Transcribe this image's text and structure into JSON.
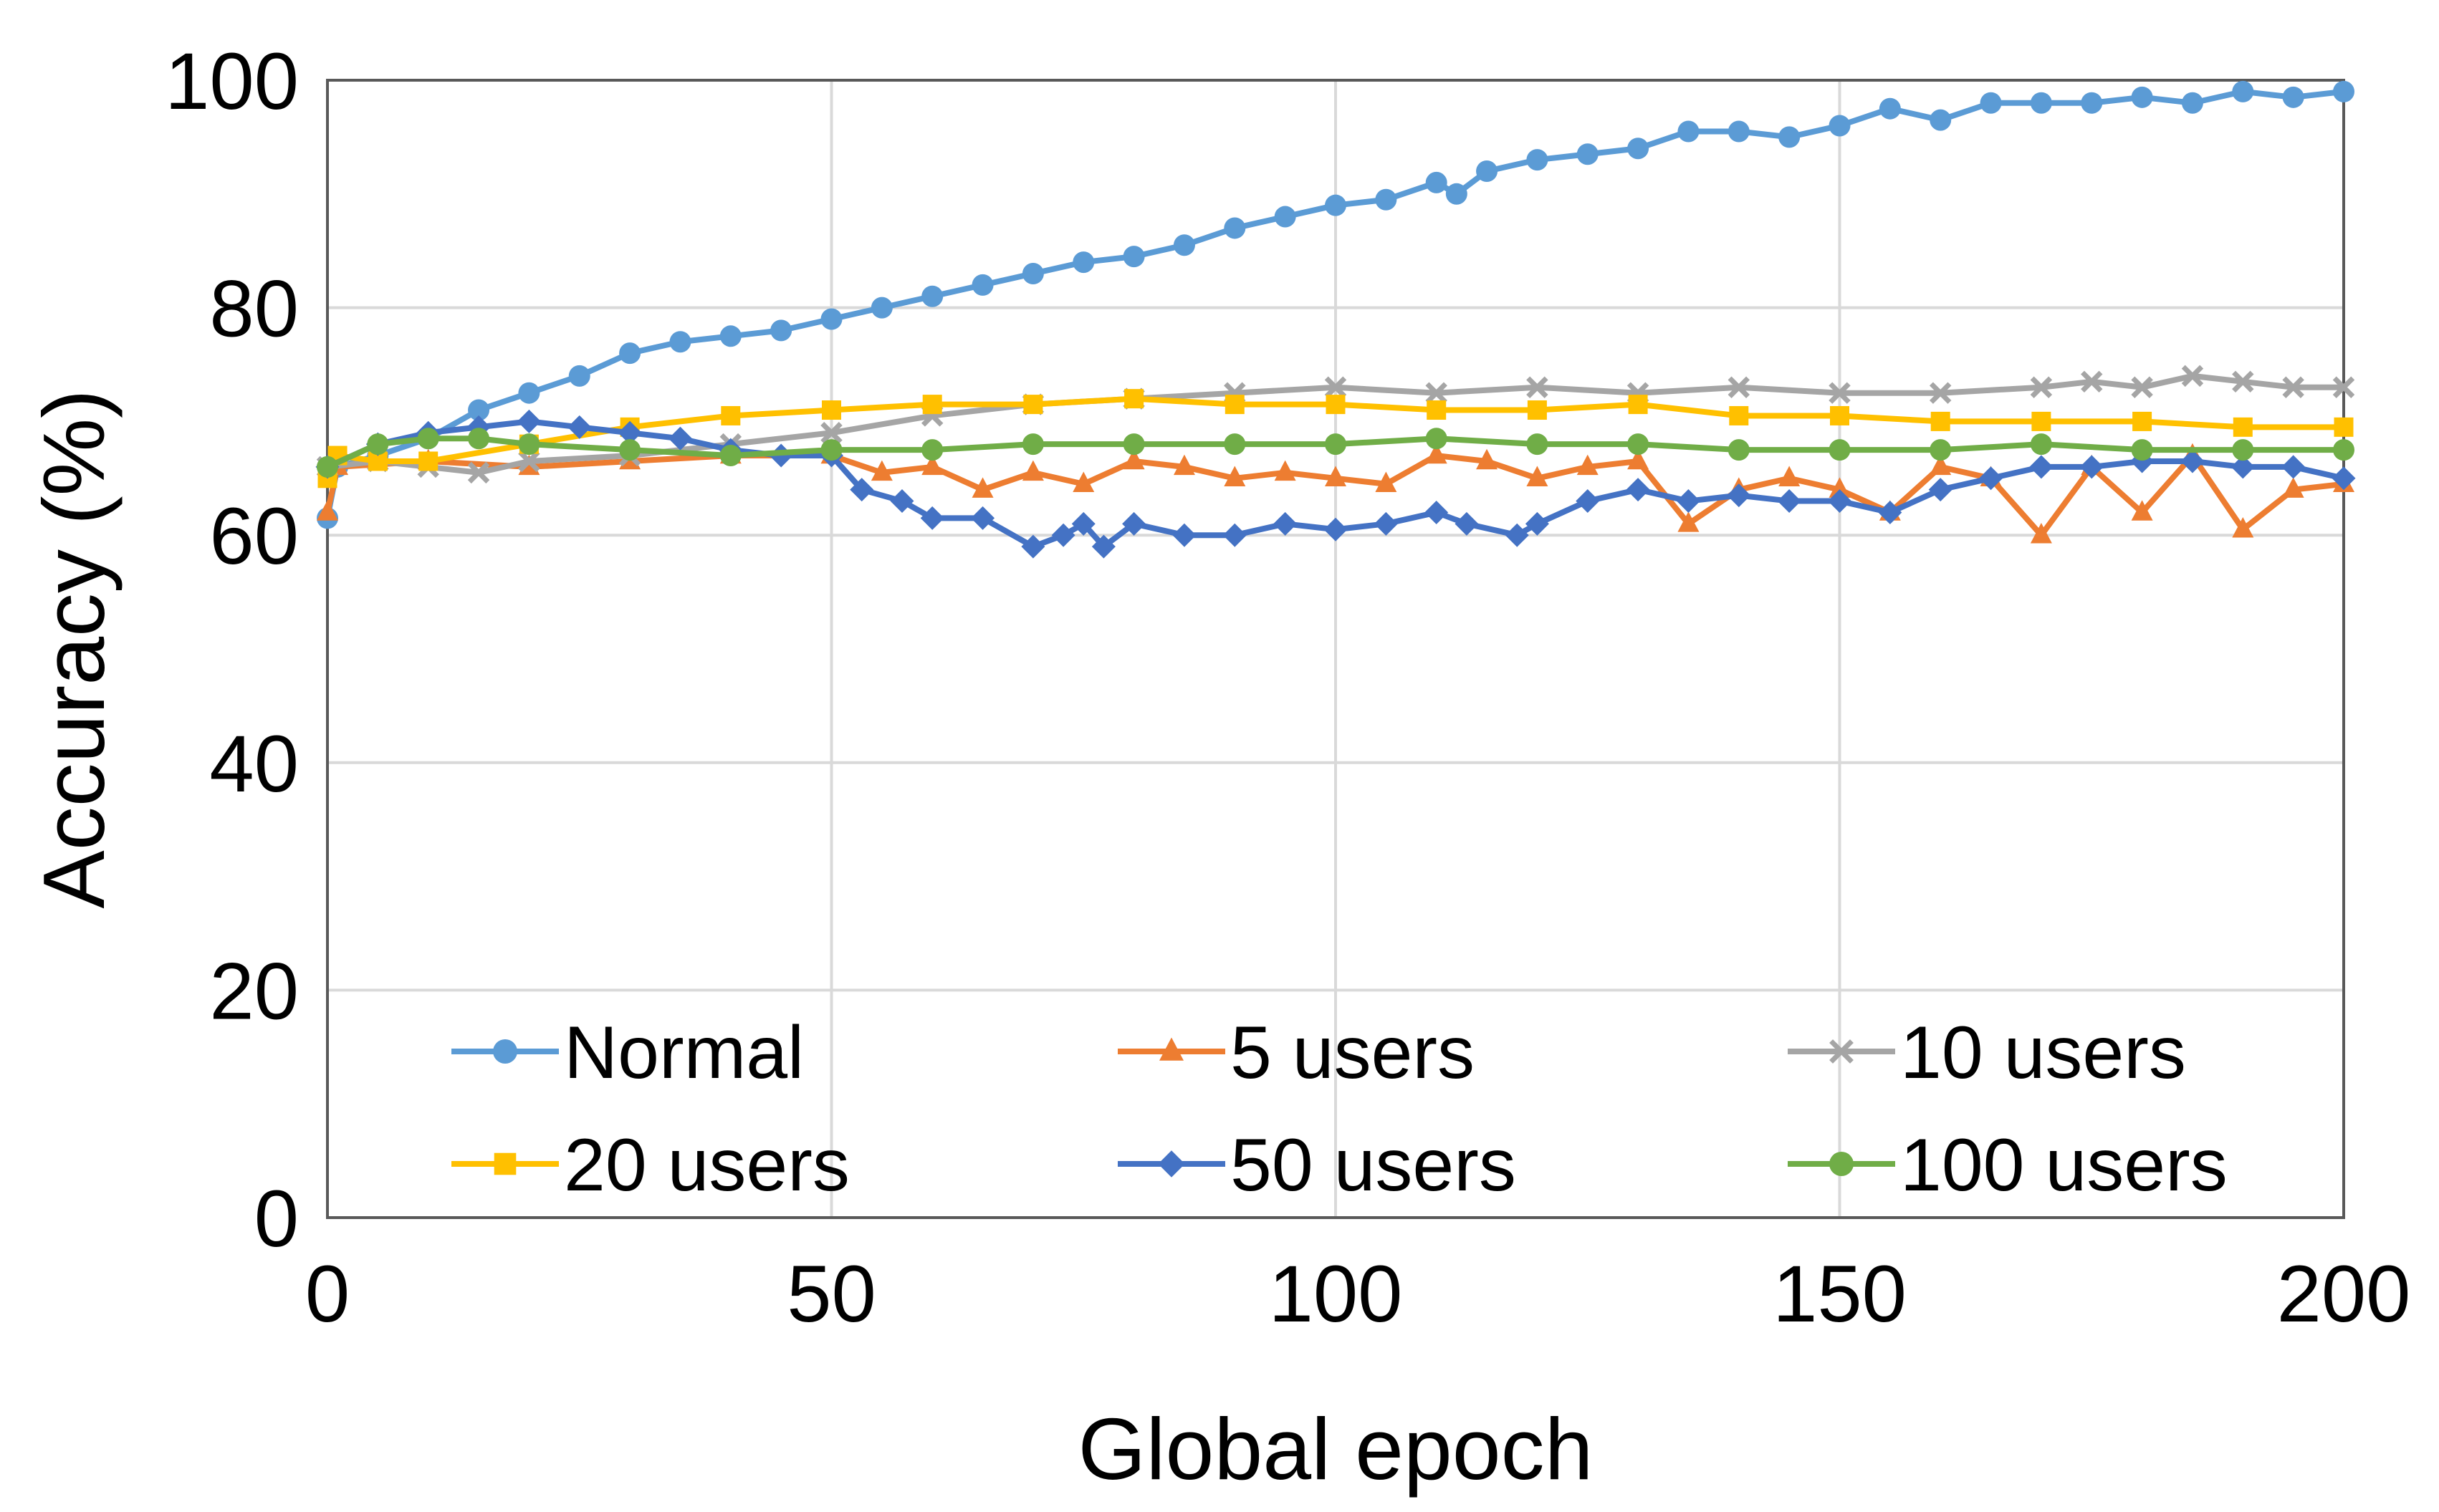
{
  "chart_data": {
    "type": "line",
    "title": "",
    "xlabel": "Global epoch",
    "ylabel": "Accuracy (%)",
    "xlim": [
      0,
      200
    ],
    "ylim": [
      0,
      100
    ],
    "x_ticks": [
      "0",
      "50",
      "100",
      "150",
      "200"
    ],
    "y_ticks": [
      "0",
      "20",
      "40",
      "60",
      "80",
      "100"
    ],
    "grid": true,
    "legend_position": "bottom, inside plot area, 3 columns",
    "series": [
      {
        "name": "Normal",
        "color": "#5B9BD5",
        "marker": "circle",
        "points": [
          [
            0,
            61.5
          ],
          [
            1,
            66
          ],
          [
            5,
            67
          ],
          [
            10,
            68.5
          ],
          [
            15,
            71
          ],
          [
            20,
            72.5
          ],
          [
            25,
            74
          ],
          [
            30,
            76
          ],
          [
            35,
            77
          ],
          [
            40,
            77.5
          ],
          [
            45,
            78
          ],
          [
            50,
            79
          ],
          [
            55,
            80
          ],
          [
            60,
            81
          ],
          [
            65,
            82
          ],
          [
            70,
            83
          ],
          [
            75,
            84
          ],
          [
            80,
            84.5
          ],
          [
            85,
            85.5
          ],
          [
            90,
            87
          ],
          [
            95,
            88
          ],
          [
            100,
            89
          ],
          [
            105,
            89.5
          ],
          [
            110,
            91
          ],
          [
            112,
            90
          ],
          [
            115,
            92
          ],
          [
            120,
            93
          ],
          [
            125,
            93.5
          ],
          [
            130,
            94
          ],
          [
            135,
            95.5
          ],
          [
            140,
            95.5
          ],
          [
            145,
            95
          ],
          [
            150,
            96
          ],
          [
            155,
            97.5
          ],
          [
            160,
            96.5
          ],
          [
            165,
            98
          ],
          [
            170,
            98
          ],
          [
            175,
            98
          ],
          [
            180,
            98.5
          ],
          [
            185,
            98
          ],
          [
            190,
            99
          ],
          [
            195,
            98.5
          ],
          [
            200,
            99
          ]
        ]
      },
      {
        "name": "5 users",
        "color": "#ED7D31",
        "marker": "triangle",
        "points": [
          [
            0,
            62
          ],
          [
            1,
            66
          ],
          [
            10,
            66.5
          ],
          [
            20,
            66
          ],
          [
            30,
            66.5
          ],
          [
            40,
            67
          ],
          [
            50,
            67
          ],
          [
            55,
            65.5
          ],
          [
            60,
            66
          ],
          [
            65,
            64
          ],
          [
            70,
            65.5
          ],
          [
            75,
            64.5
          ],
          [
            80,
            66.5
          ],
          [
            85,
            66
          ],
          [
            90,
            65
          ],
          [
            95,
            65.5
          ],
          [
            100,
            65
          ],
          [
            105,
            64.5
          ],
          [
            110,
            67
          ],
          [
            115,
            66.5
          ],
          [
            120,
            65
          ],
          [
            125,
            66
          ],
          [
            130,
            66.5
          ],
          [
            135,
            61
          ],
          [
            140,
            64
          ],
          [
            145,
            65
          ],
          [
            150,
            64
          ],
          [
            155,
            62
          ],
          [
            160,
            66
          ],
          [
            165,
            65
          ],
          [
            170,
            60
          ],
          [
            175,
            66
          ],
          [
            180,
            62
          ],
          [
            185,
            67
          ],
          [
            190,
            60.5
          ],
          [
            195,
            64
          ],
          [
            200,
            64.5
          ]
        ]
      },
      {
        "name": "10 users",
        "color": "#A5A5A5",
        "marker": "x",
        "points": [
          [
            0,
            66
          ],
          [
            5,
            66.5
          ],
          [
            10,
            66
          ],
          [
            15,
            65.5
          ],
          [
            20,
            66.5
          ],
          [
            30,
            67
          ],
          [
            40,
            68
          ],
          [
            50,
            69
          ],
          [
            60,
            70.5
          ],
          [
            70,
            71.5
          ],
          [
            80,
            72
          ],
          [
            90,
            72.5
          ],
          [
            100,
            73
          ],
          [
            110,
            72.5
          ],
          [
            120,
            73
          ],
          [
            130,
            72.5
          ],
          [
            140,
            73
          ],
          [
            150,
            72.5
          ],
          [
            160,
            72.5
          ],
          [
            170,
            73
          ],
          [
            175,
            73.5
          ],
          [
            180,
            73
          ],
          [
            185,
            74
          ],
          [
            190,
            73.5
          ],
          [
            195,
            73
          ],
          [
            200,
            73
          ]
        ]
      },
      {
        "name": "20 users",
        "color": "#FFC000",
        "marker": "square",
        "points": [
          [
            0,
            65
          ],
          [
            1,
            67
          ],
          [
            5,
            66.5
          ],
          [
            10,
            66.5
          ],
          [
            20,
            68
          ],
          [
            30,
            69.5
          ],
          [
            40,
            70.5
          ],
          [
            50,
            71
          ],
          [
            60,
            71.5
          ],
          [
            70,
            71.5
          ],
          [
            80,
            72
          ],
          [
            90,
            71.5
          ],
          [
            100,
            71.5
          ],
          [
            110,
            71
          ],
          [
            120,
            71
          ],
          [
            130,
            71.5
          ],
          [
            140,
            70.5
          ],
          [
            150,
            70.5
          ],
          [
            160,
            70
          ],
          [
            170,
            70
          ],
          [
            180,
            70
          ],
          [
            190,
            69.5
          ],
          [
            200,
            69.5
          ]
        ]
      },
      {
        "name": "50 users",
        "color": "#4472C4",
        "marker": "diamond",
        "points": [
          [
            0,
            66
          ],
          [
            5,
            68
          ],
          [
            10,
            69
          ],
          [
            15,
            69.5
          ],
          [
            20,
            70
          ],
          [
            25,
            69.5
          ],
          [
            30,
            69
          ],
          [
            35,
            68.5
          ],
          [
            40,
            67.5
          ],
          [
            45,
            67
          ],
          [
            50,
            67
          ],
          [
            53,
            64
          ],
          [
            57,
            63
          ],
          [
            60,
            61.5
          ],
          [
            65,
            61.5
          ],
          [
            70,
            59
          ],
          [
            73,
            60
          ],
          [
            75,
            61
          ],
          [
            77,
            59
          ],
          [
            80,
            61
          ],
          [
            85,
            60
          ],
          [
            90,
            60
          ],
          [
            95,
            61
          ],
          [
            100,
            60.5
          ],
          [
            105,
            61
          ],
          [
            110,
            62
          ],
          [
            113,
            61
          ],
          [
            118,
            60
          ],
          [
            120,
            61
          ],
          [
            125,
            63
          ],
          [
            130,
            64
          ],
          [
            135,
            63
          ],
          [
            140,
            63.5
          ],
          [
            145,
            63
          ],
          [
            150,
            63
          ],
          [
            155,
            62
          ],
          [
            160,
            64
          ],
          [
            165,
            65
          ],
          [
            170,
            66
          ],
          [
            175,
            66
          ],
          [
            180,
            66.5
          ],
          [
            185,
            66.5
          ],
          [
            190,
            66
          ],
          [
            195,
            66
          ],
          [
            200,
            65
          ]
        ]
      },
      {
        "name": "100 users",
        "color": "#70AD47",
        "marker": "circle",
        "points": [
          [
            0,
            66
          ],
          [
            5,
            68
          ],
          [
            10,
            68.5
          ],
          [
            15,
            68.5
          ],
          [
            20,
            68
          ],
          [
            30,
            67.5
          ],
          [
            40,
            67
          ],
          [
            50,
            67.5
          ],
          [
            60,
            67.5
          ],
          [
            70,
            68
          ],
          [
            80,
            68
          ],
          [
            90,
            68
          ],
          [
            100,
            68
          ],
          [
            110,
            68.5
          ],
          [
            120,
            68
          ],
          [
            130,
            68
          ],
          [
            140,
            67.5
          ],
          [
            150,
            67.5
          ],
          [
            160,
            67.5
          ],
          [
            170,
            68
          ],
          [
            180,
            67.5
          ],
          [
            190,
            67.5
          ],
          [
            200,
            67.5
          ]
        ]
      }
    ]
  }
}
